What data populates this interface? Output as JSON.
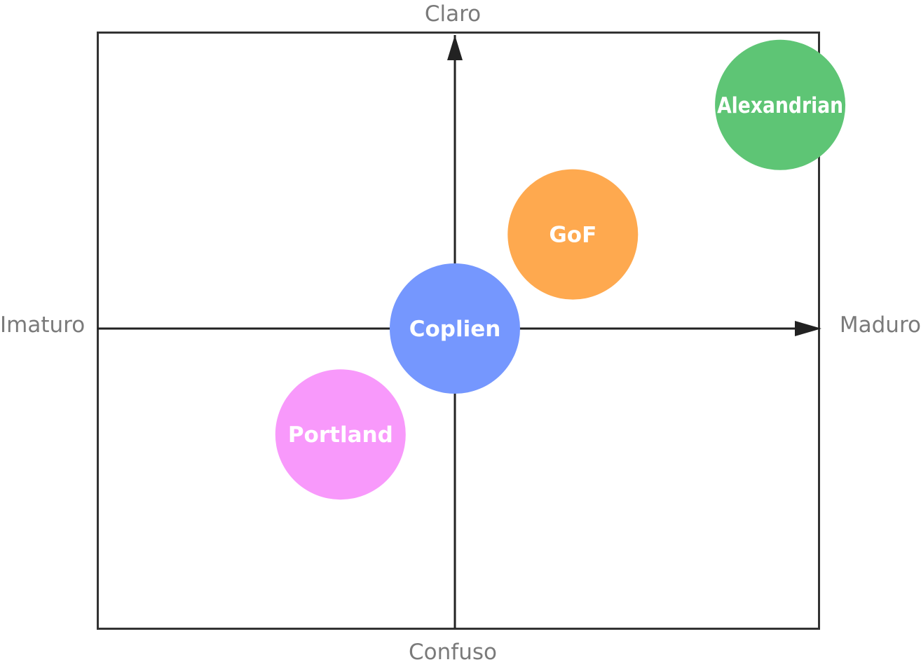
{
  "axes": {
    "top": "Claro",
    "bottom": "Confuso",
    "left": "Imaturo",
    "right": "Maduro"
  },
  "bubbles": [
    {
      "id": "alexandrian",
      "label": "Alexandrian",
      "color": "#5ec575",
      "maturity": 0.91,
      "clarity": 0.76
    },
    {
      "id": "gof",
      "label": "GoF",
      "color": "#fea94f",
      "maturity": 0.33,
      "clarity": 0.32
    },
    {
      "id": "coplien",
      "label": "Coplien",
      "color": "#7597fe",
      "maturity": 0.0,
      "clarity": 0.0
    },
    {
      "id": "portland",
      "label": "Portland",
      "color": "#f899fb",
      "maturity": -0.32,
      "clarity": -0.36
    }
  ],
  "colors": {
    "frame": "#333333",
    "axis": "#222222",
    "label": "#7a7a7a"
  }
}
